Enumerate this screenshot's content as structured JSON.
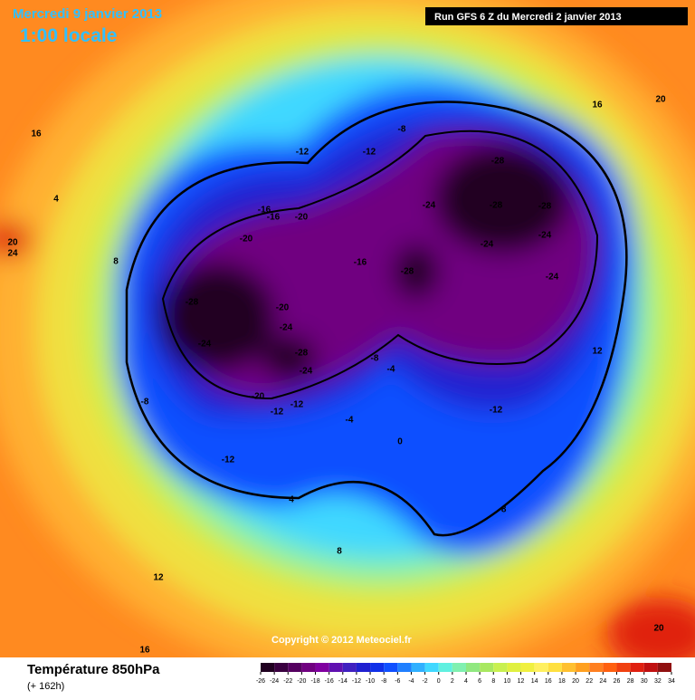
{
  "header": {
    "date": "Mercredi 9 janvier 2013",
    "time": "1:00 locale",
    "run": "Run GFS 6 Z du Mercredi 2 janvier 2013"
  },
  "footer": {
    "title": "Température 850hPa",
    "lead": "(+ 162h)",
    "copyright": "Copyright © 2012 Meteociel.fr"
  },
  "legend": {
    "ticks": [
      -26,
      -24,
      -22,
      -20,
      -18,
      -16,
      -14,
      -12,
      -10,
      -8,
      -6,
      -4,
      -2,
      0,
      2,
      4,
      6,
      8,
      10,
      12,
      14,
      16,
      18,
      20,
      22,
      24,
      26,
      28,
      30,
      32,
      34
    ],
    "colors": [
      "#200020",
      "#3a0040",
      "#550060",
      "#700080",
      "#8000a0",
      "#6010b0",
      "#4020c0",
      "#2020d0",
      "#1030e8",
      "#1050ff",
      "#2080ff",
      "#30b0ff",
      "#40d8ff",
      "#60f0e0",
      "#80f0b0",
      "#90e880",
      "#a8e860",
      "#c8f050",
      "#e0f040",
      "#f0f040",
      "#fff060",
      "#ffe040",
      "#ffc030",
      "#ffa020",
      "#ff8020",
      "#ff6010",
      "#f04010",
      "#e02010",
      "#c01010",
      "#901010"
    ]
  },
  "map": {
    "labels": [
      "-28",
      "-24",
      "-20",
      "-24",
      "-28",
      "-24",
      "-20",
      "-12",
      "-12",
      "-16",
      "-20",
      "-16",
      "-20",
      "-12",
      "-12",
      "-8",
      "-8",
      "-24",
      "-28",
      "-28",
      "-28",
      "-24",
      "-24",
      "-28",
      "-24",
      "-16",
      "-12",
      "-12",
      "-8",
      "-8",
      "-4",
      "-4",
      "0",
      "4",
      "4",
      "8",
      "8",
      "12",
      "12",
      "16",
      "16",
      "16",
      "20",
      "20",
      "24",
      "20"
    ]
  }
}
